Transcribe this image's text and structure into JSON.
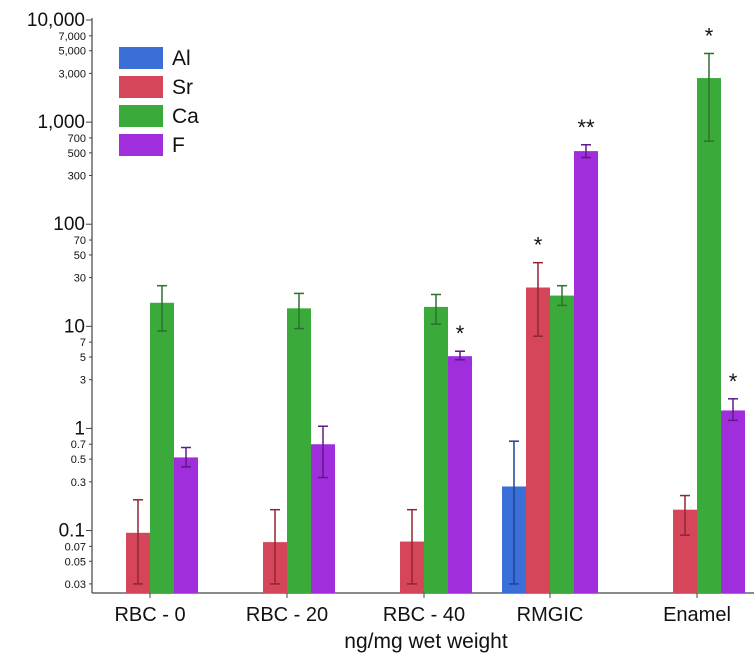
{
  "chart_data": {
    "type": "bar",
    "yscale": "log",
    "ylim": [
      0.025,
      10000
    ],
    "xlabel": "ng/mg wet weight",
    "ylabel": "",
    "categories": [
      "RBC - 0",
      "RBC - 20",
      "RBC - 40",
      "RMGIC",
      "Enamel"
    ],
    "major_ticks": [
      {
        "value": 0.1,
        "label": "0.1"
      },
      {
        "value": 1,
        "label": "1"
      },
      {
        "value": 10,
        "label": "10"
      },
      {
        "value": 100,
        "label": "100"
      },
      {
        "value": 1000,
        "label": "1,000"
      },
      {
        "value": 10000,
        "label": "10,000"
      }
    ],
    "minor_ticks": [
      {
        "value": 0.03,
        "label": "0.03"
      },
      {
        "value": 0.05,
        "label": "0.05"
      },
      {
        "value": 0.07,
        "label": "0.07"
      },
      {
        "value": 0.3,
        "label": "0.3"
      },
      {
        "value": 0.5,
        "label": "0.5"
      },
      {
        "value": 0.7,
        "label": "0.7"
      },
      {
        "value": 3,
        "label": "3"
      },
      {
        "value": 5,
        "label": "5"
      },
      {
        "value": 7,
        "label": "7"
      },
      {
        "value": 30,
        "label": "30"
      },
      {
        "value": 50,
        "label": "50"
      },
      {
        "value": 70,
        "label": "70"
      },
      {
        "value": 300,
        "label": "300"
      },
      {
        "value": 500,
        "label": "500"
      },
      {
        "value": 700,
        "label": "700"
      },
      {
        "value": 3000,
        "label": "3,000"
      },
      {
        "value": 5000,
        "label": "5,000"
      },
      {
        "value": 7000,
        "label": "7,000"
      }
    ],
    "series": [
      {
        "name": "Al",
        "color": "#3a6fd8",
        "values": [
          null,
          null,
          null,
          0.27,
          null
        ],
        "error_low": [
          null,
          null,
          null,
          0.03,
          null
        ],
        "error_high": [
          null,
          null,
          null,
          0.75,
          null
        ]
      },
      {
        "name": "Sr",
        "color": "#d6465a",
        "values": [
          0.095,
          0.077,
          0.078,
          24,
          0.16
        ],
        "error_low": [
          0.03,
          0.03,
          0.03,
          8,
          0.09
        ],
        "error_high": [
          0.2,
          0.16,
          0.16,
          42,
          0.22
        ]
      },
      {
        "name": "Ca",
        "color": "#3aab3a",
        "values": [
          17,
          15,
          15.5,
          20,
          2700
        ],
        "error_low": [
          9,
          9.5,
          10.5,
          16,
          650
        ],
        "error_high": [
          25,
          21,
          20.5,
          25,
          4700
        ]
      },
      {
        "name": "F",
        "color": "#a02edc",
        "values": [
          0.52,
          0.7,
          5.1,
          520,
          1.5
        ],
        "error_low": [
          0.42,
          0.33,
          4.7,
          450,
          1.2
        ],
        "error_high": [
          0.65,
          1.05,
          5.7,
          600,
          1.95
        ]
      }
    ],
    "annotations": [
      {
        "category": "RBC - 40",
        "series": "F",
        "text": "*"
      },
      {
        "category": "RMGIC",
        "series": "Sr",
        "text": "*"
      },
      {
        "category": "RMGIC",
        "series": "F",
        "text": "**"
      },
      {
        "category": "Enamel",
        "series": "Ca",
        "text": "*"
      },
      {
        "category": "Enamel",
        "series": "F",
        "text": "*"
      }
    ],
    "legend": {
      "position": "top-left",
      "entries": [
        "Al",
        "Sr",
        "Ca",
        "F"
      ]
    },
    "grid": false
  }
}
